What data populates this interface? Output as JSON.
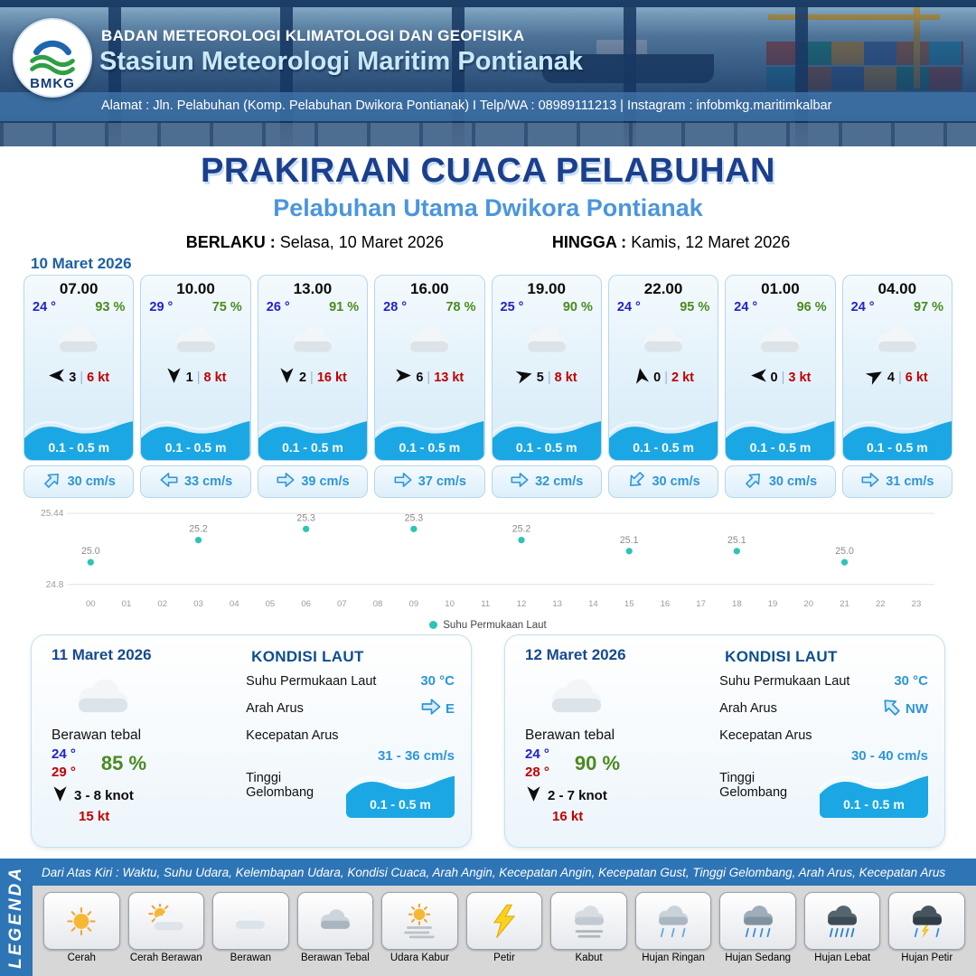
{
  "header": {
    "logo_label": "BMKG",
    "org": "BADAN METEOROLOGI KLIMATOLOGI DAN GEOFISIKA",
    "station": "Stasiun Meteorologi Maritim Pontianak",
    "address": "Alamat : Jln. Pelabuhan (Komp. Pelabuhan Dwikora Pontianak) I Telp/WA : 08989111213 | Instagram : infobmkg.maritimkalbar"
  },
  "title": {
    "main": "PRAKIRAAN CUACA PELABUHAN",
    "sub": "Pelabuhan Utama Dwikora Pontianak",
    "valid_from_label": "BERLAKU :",
    "valid_from": "Selasa, 10 Maret 2026",
    "valid_to_label": "HINGGA :",
    "valid_to": "Kamis, 12 Maret 2026"
  },
  "hourly": {
    "date": "10 Maret 2026",
    "cards": [
      {
        "time": "07.00",
        "temp": "24 °",
        "humidity": "93 %",
        "wind_dir_deg": 180,
        "wind_value": "3",
        "gust": "6 kt",
        "wave": "0.1 - 0.5 m",
        "current_dir_deg": -45,
        "current": "30 cm/s"
      },
      {
        "time": "10.00",
        "temp": "29 °",
        "humidity": "75 %",
        "wind_dir_deg": 90,
        "wind_value": "1",
        "gust": "8 kt",
        "wave": "0.1 - 0.5 m",
        "current_dir_deg": 180,
        "current": "33 cm/s"
      },
      {
        "time": "13.00",
        "temp": "26 °",
        "humidity": "91 %",
        "wind_dir_deg": 90,
        "wind_value": "2",
        "gust": "16 kt",
        "wave": "0.1 - 0.5 m",
        "current_dir_deg": 0,
        "current": "39 cm/s"
      },
      {
        "time": "16.00",
        "temp": "28 °",
        "humidity": "78 %",
        "wind_dir_deg": 0,
        "wind_value": "6",
        "gust": "13 kt",
        "wave": "0.1 - 0.5 m",
        "current_dir_deg": 0,
        "current": "37 cm/s"
      },
      {
        "time": "19.00",
        "temp": "25 °",
        "humidity": "90 %",
        "wind_dir_deg": -15,
        "wind_value": "5",
        "gust": "8 kt",
        "wave": "0.1 - 0.5 m",
        "current_dir_deg": 0,
        "current": "32 cm/s"
      },
      {
        "time": "22.00",
        "temp": "24 °",
        "humidity": "95 %",
        "wind_dir_deg": -100,
        "wind_value": "0",
        "gust": "2 kt",
        "wave": "0.1 - 0.5 m",
        "current_dir_deg": 135,
        "current": "30 cm/s"
      },
      {
        "time": "01.00",
        "temp": "24 °",
        "humidity": "96 %",
        "wind_dir_deg": 180,
        "wind_value": "0",
        "gust": "3 kt",
        "wave": "0.1 - 0.5 m",
        "current_dir_deg": -45,
        "current": "30 cm/s"
      },
      {
        "time": "04.00",
        "temp": "24 °",
        "humidity": "97 %",
        "wind_dir_deg": -30,
        "wind_value": "4",
        "gust": "6 kt",
        "wave": "0.1 - 0.5 m",
        "current_dir_deg": 0,
        "current": "31 cm/s"
      }
    ]
  },
  "chart_data": {
    "type": "scatter",
    "title": "Suhu Permukaan Laut",
    "x_hours": [
      0,
      3,
      6,
      9,
      12,
      15,
      18,
      21
    ],
    "values": [
      25.0,
      25.2,
      25.3,
      25.3,
      25.2,
      25.1,
      25.1,
      25.0
    ],
    "point_labels": [
      "25.0",
      "25.2",
      "25.3",
      "25.3",
      "25.2",
      "25.1",
      "25.1",
      "25.0"
    ],
    "x_ticks": [
      "00",
      "01",
      "02",
      "03",
      "04",
      "05",
      "06",
      "07",
      "08",
      "09",
      "10",
      "11",
      "12",
      "13",
      "14",
      "15",
      "16",
      "17",
      "18",
      "19",
      "20",
      "21",
      "22",
      "23"
    ],
    "ylim": [
      24.8,
      25.44
    ],
    "y_tick_labels": [
      "25.44",
      "24.8"
    ],
    "legend": "Suhu Permukaan Laut",
    "legend_position": "bottom",
    "grid": true,
    "point_color": "#2ec4b6"
  },
  "daily": [
    {
      "date": "11 Maret 2026",
      "condition": "Berawan tebal",
      "temp_min": "24 °",
      "temp_max": "29 °",
      "humidity": "85 %",
      "wind_dir_deg": 90,
      "wind": "3 - 8 knot",
      "gust": "15 kt",
      "sea": {
        "title": "KONDISI LAUT",
        "sst_label": "Suhu Permukaan Laut",
        "sst": "30 °C",
        "current_dir_label": "Arah Arus",
        "current_dir": "E",
        "current_dir_deg": 0,
        "current_speed_label": "Kecepatan Arus",
        "current_speed": "31 - 36 cm/s",
        "wave_label": "Tinggi Gelombang",
        "wave": "0.1 - 0.5 m"
      }
    },
    {
      "date": "12 Maret 2026",
      "condition": "Berawan tebal",
      "temp_min": "24 °",
      "temp_max": "28 °",
      "humidity": "90 %",
      "wind_dir_deg": 90,
      "wind": "2 - 7 knot",
      "gust": "16 kt",
      "sea": {
        "title": "KONDISI LAUT",
        "sst_label": "Suhu Permukaan Laut",
        "sst": "30 °C",
        "current_dir_label": "Arah Arus",
        "current_dir": "NW",
        "current_dir_deg": -135,
        "current_speed_label": "Kecepatan Arus",
        "current_speed": "30 - 40 cm/s",
        "wave_label": "Tinggi Gelombang",
        "wave": "0.1 - 0.5 m"
      }
    }
  ],
  "legend": {
    "side_label": "LEGENDA",
    "note": "Dari Atas Kiri : Waktu, Suhu Udara, Kelembapan Udara, Kondisi Cuaca, Arah Angin, Kecepatan Angin, Kecepatan Gust, Tinggi Gelombang, Arah Arus, Kecepatan Arus",
    "items": [
      {
        "label": "Cerah",
        "icon": "sun"
      },
      {
        "label": "Cerah Berawan",
        "icon": "sun-cloud"
      },
      {
        "label": "Berawan",
        "icon": "cloud"
      },
      {
        "label": "Berawan Tebal",
        "icon": "cloud-thick"
      },
      {
        "label": "Udara Kabur",
        "icon": "haze"
      },
      {
        "label": "Petir",
        "icon": "lightning"
      },
      {
        "label": "Kabut",
        "icon": "fog"
      },
      {
        "label": "Hujan Ringan",
        "icon": "rain-light"
      },
      {
        "label": "Hujan Sedang",
        "icon": "rain-medium"
      },
      {
        "label": "Hujan Lebat",
        "icon": "rain-heavy"
      },
      {
        "label": "Hujan Petir",
        "icon": "rain-thunder"
      }
    ]
  },
  "colors": {
    "navy": "#1b3f8c",
    "subtitle_blue": "#4a96dd",
    "temp_blue": "#2222cc",
    "humidity_green": "#4a8b1e",
    "gust_red": "#c00000",
    "value_blue": "#2e96d6",
    "wave_blue": "#1ba7e3",
    "legend_blue": "#2e75b6",
    "chart_point": "#2ec4b6",
    "date_blue": "#1d5fa6"
  }
}
